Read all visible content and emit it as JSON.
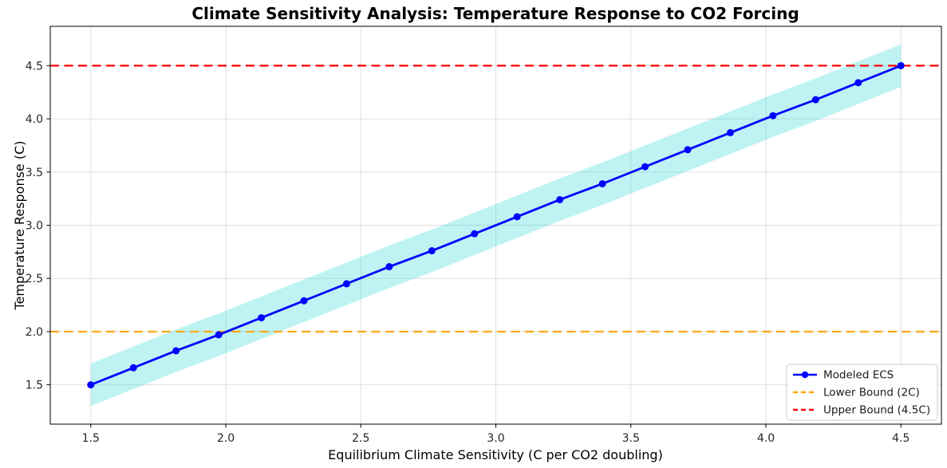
{
  "chart_data": {
    "type": "line",
    "title": "Climate Sensitivity Analysis: Temperature Response to CO2 Forcing",
    "xlabel": "Equilibrium Climate Sensitivity (C per CO2 doubling)",
    "ylabel": "Temperature Response (C)",
    "xlim": [
      1.35,
      4.65
    ],
    "ylim": [
      1.13,
      4.87
    ],
    "xticks": [
      1.5,
      2.0,
      2.5,
      3.0,
      3.5,
      4.0,
      4.5
    ],
    "yticks": [
      1.5,
      2.0,
      2.5,
      3.0,
      3.5,
      4.0,
      4.5
    ],
    "grid": true,
    "grid_color": "#d9d9d9",
    "background_color": "#ffffff",
    "spine_color": "#000000",
    "x": [
      1.5,
      1.6579,
      1.8158,
      1.9737,
      2.1316,
      2.2895,
      2.4474,
      2.6053,
      2.7632,
      2.9211,
      3.0789,
      3.2368,
      3.3947,
      3.5526,
      3.7105,
      3.8684,
      4.0263,
      4.1842,
      4.3421,
      4.5
    ],
    "series": [
      {
        "name": "Modeled ECS",
        "color": "#0000ff",
        "marker": "circle",
        "values": [
          1.5,
          1.66,
          1.82,
          1.97,
          2.13,
          2.29,
          2.45,
          2.61,
          2.76,
          2.92,
          3.08,
          3.24,
          3.39,
          3.55,
          3.71,
          3.87,
          4.03,
          4.18,
          4.34,
          4.5
        ]
      }
    ],
    "band": {
      "name": "uncertainty-band",
      "follows": "Modeled ECS",
      "offset": 0.2,
      "color": "rgba(0, 206, 209, 0.25)"
    },
    "hlines": [
      {
        "name": "Lower Bound (2C)",
        "value": 2.0,
        "color": "#ffa500",
        "dash": true
      },
      {
        "name": "Upper Bound (4.5C)",
        "value": 4.5,
        "color": "#ff0000",
        "dash": true
      }
    ],
    "legend": {
      "position": "lower right"
    }
  }
}
